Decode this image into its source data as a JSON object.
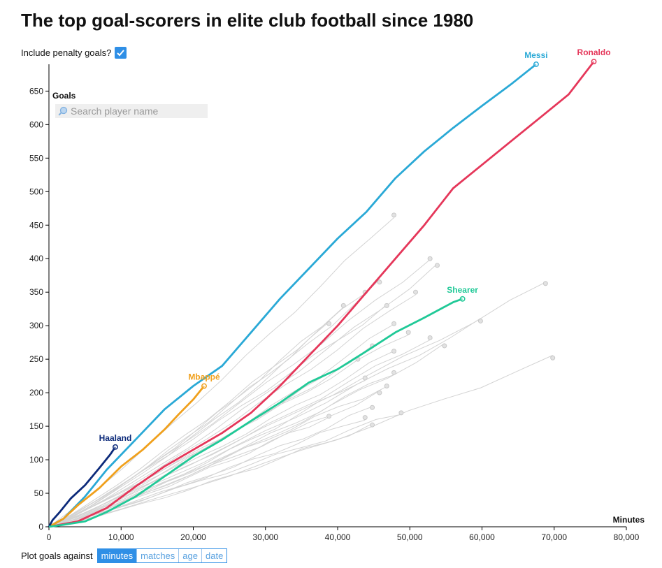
{
  "title": "The top goal-scorers in elite club football since 1980",
  "penalty_label": "Include penalty goals?",
  "search": {
    "placeholder": "Search player name"
  },
  "plot_against": {
    "label": "Plot goals against",
    "options": [
      "minutes",
      "matches",
      "age",
      "date"
    ],
    "selected": "minutes"
  },
  "colors": {
    "accent": "#2f8fe6",
    "background_lines": "#d3d3d3",
    "Messi": "#2aa9d6",
    "Ronaldo": "#e5375a",
    "Mbappé": "#f0a01c",
    "Haaland": "#0c2a7a",
    "Shearer": "#20c997"
  },
  "chart_data": {
    "type": "line",
    "title": "The top goal-scorers in elite club football since 1980",
    "xlabel": "Minutes",
    "ylabel": "Goals",
    "xlim": [
      0,
      80000
    ],
    "ylim": [
      0,
      690
    ],
    "x_ticks": [
      0,
      10000,
      20000,
      30000,
      40000,
      50000,
      60000,
      70000,
      80000
    ],
    "x_tick_labels": [
      "0",
      "10,000",
      "20,000",
      "30,000",
      "40,000",
      "50,000",
      "60,000",
      "70,000",
      "80,000"
    ],
    "y_ticks": [
      0,
      50,
      100,
      150,
      200,
      250,
      300,
      350,
      400,
      450,
      500,
      550,
      600,
      650
    ],
    "y_tick_labels": [
      "0",
      "50",
      "100",
      "150",
      "200",
      "250",
      "300",
      "350",
      "400",
      "450",
      "500",
      "550",
      "600",
      "650"
    ],
    "grid": false,
    "highlighted_series": [
      {
        "name": "Messi",
        "points": [
          [
            0,
            0
          ],
          [
            2000,
            12
          ],
          [
            5000,
            45
          ],
          [
            8000,
            85
          ],
          [
            12000,
            130
          ],
          [
            16000,
            175
          ],
          [
            20000,
            210
          ],
          [
            24000,
            240
          ],
          [
            28000,
            290
          ],
          [
            32000,
            340
          ],
          [
            36000,
            385
          ],
          [
            40000,
            430
          ],
          [
            44000,
            470
          ],
          [
            48000,
            520
          ],
          [
            52000,
            560
          ],
          [
            56000,
            595
          ],
          [
            60000,
            628
          ],
          [
            64000,
            660
          ],
          [
            67500,
            690
          ]
        ]
      },
      {
        "name": "Ronaldo",
        "points": [
          [
            0,
            0
          ],
          [
            4000,
            8
          ],
          [
            8000,
            28
          ],
          [
            12000,
            60
          ],
          [
            16000,
            90
          ],
          [
            20000,
            115
          ],
          [
            24000,
            140
          ],
          [
            28000,
            170
          ],
          [
            32000,
            210
          ],
          [
            36000,
            255
          ],
          [
            40000,
            300
          ],
          [
            44000,
            350
          ],
          [
            48000,
            400
          ],
          [
            52000,
            450
          ],
          [
            56000,
            505
          ],
          [
            60000,
            540
          ],
          [
            64000,
            575
          ],
          [
            68000,
            610
          ],
          [
            72000,
            645
          ],
          [
            75500,
            694
          ]
        ]
      },
      {
        "name": "Mbappé",
        "points": [
          [
            0,
            0
          ],
          [
            2000,
            12
          ],
          [
            4000,
            32
          ],
          [
            7000,
            58
          ],
          [
            10000,
            90
          ],
          [
            13000,
            115
          ],
          [
            16000,
            145
          ],
          [
            18000,
            168
          ],
          [
            20000,
            190
          ],
          [
            21500,
            210
          ]
        ]
      },
      {
        "name": "Haaland",
        "points": [
          [
            0,
            0
          ],
          [
            500,
            10
          ],
          [
            1500,
            22
          ],
          [
            3000,
            42
          ],
          [
            5000,
            62
          ],
          [
            7000,
            88
          ],
          [
            8500,
            108
          ],
          [
            9200,
            119
          ]
        ]
      },
      {
        "name": "Shearer",
        "points": [
          [
            0,
            0
          ],
          [
            2000,
            3
          ],
          [
            5000,
            8
          ],
          [
            8000,
            22
          ],
          [
            12000,
            45
          ],
          [
            16000,
            75
          ],
          [
            20000,
            105
          ],
          [
            24000,
            130
          ],
          [
            28000,
            158
          ],
          [
            32000,
            185
          ],
          [
            36000,
            215
          ],
          [
            40000,
            235
          ],
          [
            44000,
            262
          ],
          [
            48000,
            290
          ],
          [
            52000,
            312
          ],
          [
            56000,
            335
          ],
          [
            57300,
            340
          ]
        ]
      }
    ],
    "end_labels": [
      "Messi",
      "Ronaldo",
      "Mbappé",
      "Haaland",
      "Shearer"
    ],
    "background_series_endpoints": [
      [
        47800,
        465
      ],
      [
        52800,
        400
      ],
      [
        53800,
        390
      ],
      [
        45800,
        365
      ],
      [
        68800,
        363
      ],
      [
        43800,
        350
      ],
      [
        50800,
        350
      ],
      [
        40800,
        330
      ],
      [
        46800,
        330
      ],
      [
        59800,
        307
      ],
      [
        38800,
        303
      ],
      [
        47800,
        303
      ],
      [
        49800,
        290
      ],
      [
        52800,
        282
      ],
      [
        44800,
        270
      ],
      [
        54800,
        270
      ],
      [
        42800,
        250
      ],
      [
        47800,
        262
      ],
      [
        47800,
        230
      ],
      [
        43800,
        222
      ],
      [
        46800,
        210
      ],
      [
        45800,
        200
      ],
      [
        69800,
        252
      ],
      [
        44800,
        178
      ],
      [
        48800,
        170
      ],
      [
        43800,
        163
      ],
      [
        38800,
        165
      ],
      [
        44800,
        152
      ]
    ]
  }
}
